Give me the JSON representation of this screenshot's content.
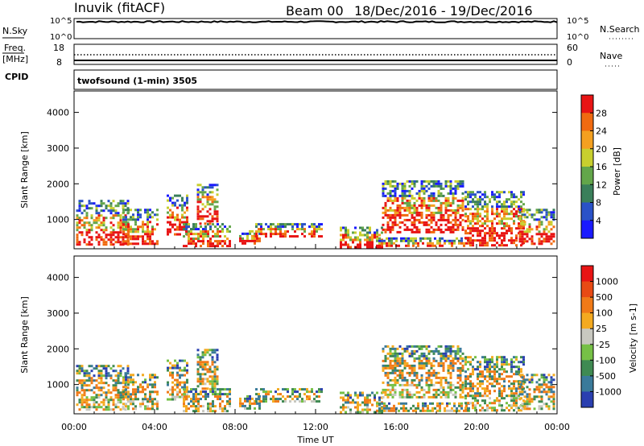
{
  "header": {
    "station": "Inuvik (fitACF)",
    "beam": "Beam 00",
    "date_range": "18/Dec/2016 - 19/Dec/2016"
  },
  "labels": {
    "nsky": "N.Sky",
    "nsearch": "N.Search",
    "freq_line1": "Freq.",
    "freq_line2": "[MHz]",
    "nave": "Nave",
    "cpid": "CPID",
    "cpid_value": "twofsound (1-min) 3505"
  },
  "chart_data": {
    "type": "heatmap",
    "xlabel": "Time UT",
    "x_ticks": [
      "00:00",
      "04:00",
      "08:00",
      "12:00",
      "16:00",
      "20:00",
      "00:00"
    ],
    "x_range_hours": [
      0,
      24
    ],
    "top_panels": {
      "nsky": {
        "left_ticks": [
          "10^5",
          "10^0"
        ],
        "right_ticks": [
          "10^5",
          "10^0"
        ],
        "typical_log_value": 4.2
      },
      "freq": {
        "left_ticks": [
          "18",
          "8"
        ],
        "right_ticks": [
          "60",
          "0"
        ],
        "freq_mhz": 8.8,
        "nave": 30
      }
    },
    "panels": [
      {
        "name": "power",
        "ylabel": "Slant Range [km]",
        "yticks": [
          "4000",
          "3000",
          "2000",
          "1000"
        ],
        "ytick_values": [
          4000,
          3000,
          2000,
          1000
        ],
        "ylim": [
          180,
          4600
        ],
        "colorbar_label": "Power [dB]",
        "colorbar_ticks": [
          "4",
          "8",
          "12",
          "16",
          "20",
          "24",
          "28"
        ],
        "colorbar_colors": [
          "#1a1aff",
          "#2a52c8",
          "#3a7f5a",
          "#63a64a",
          "#c8cf2e",
          "#f4a020",
          "#f06a10",
          "#e81414"
        ]
      },
      {
        "name": "velocity",
        "ylabel": "Slant Range [km]",
        "yticks": [
          "4000",
          "3000",
          "2000",
          "1000"
        ],
        "ytick_values": [
          4000,
          3000,
          2000,
          1000
        ],
        "ylim": [
          180,
          4600
        ],
        "colorbar_label": "Velocity [m s-1]",
        "colorbar_ticks": [
          "1000",
          "500",
          "100",
          "25",
          "-25",
          "-100",
          "-500",
          "-1000"
        ],
        "colorbar_colors": [
          "#2a3fb0",
          "#3a7a9a",
          "#3f8a52",
          "#76c046",
          "#c8c8c0",
          "#f4aa20",
          "#f07a18",
          "#e84a14",
          "#e81414"
        ]
      }
    ],
    "echo_regions": [
      {
        "t0": 0.1,
        "t1": 2.7,
        "r0": 300,
        "r1": 1550
      },
      {
        "t0": 2.4,
        "t1": 4.2,
        "r0": 300,
        "r1": 1300
      },
      {
        "t0": 4.6,
        "t1": 5.6,
        "r0": 600,
        "r1": 1700
      },
      {
        "t0": 5.4,
        "t1": 7.8,
        "r0": 250,
        "r1": 900
      },
      {
        "t0": 6.1,
        "t1": 7.1,
        "r0": 900,
        "r1": 2000
      },
      {
        "t0": 8.2,
        "t1": 9.2,
        "r0": 300,
        "r1": 700
      },
      {
        "t0": 9.0,
        "t1": 12.3,
        "r0": 500,
        "r1": 900
      },
      {
        "t0": 13.2,
        "t1": 15.3,
        "r0": 250,
        "r1": 800
      },
      {
        "t0": 15.0,
        "t1": 19.6,
        "r0": 250,
        "r1": 500
      },
      {
        "t0": 15.3,
        "t1": 19.3,
        "r0": 650,
        "r1": 2100
      },
      {
        "t0": 19.4,
        "t1": 22.4,
        "r0": 300,
        "r1": 1800
      },
      {
        "t0": 22.1,
        "t1": 23.9,
        "r0": 300,
        "r1": 1300
      }
    ]
  }
}
